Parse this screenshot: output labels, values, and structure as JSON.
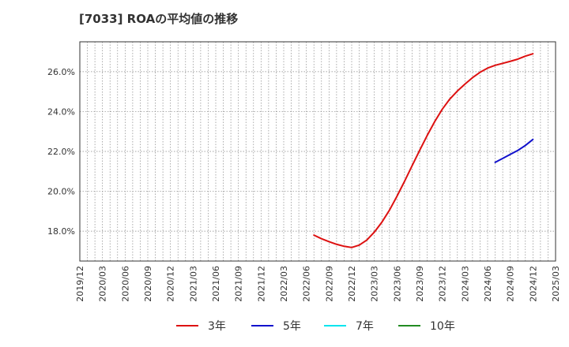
{
  "chart_data": {
    "type": "line",
    "title": "[7033]  ROAの平均値の推移",
    "xlabel": "",
    "ylabel": "",
    "x_tick_labels": [
      "2019/12",
      "2020/03",
      "2020/06",
      "2020/09",
      "2020/12",
      "2021/03",
      "2021/06",
      "2021/09",
      "2021/12",
      "2022/03",
      "2022/06",
      "2022/09",
      "2022/12",
      "2023/03",
      "2023/06",
      "2023/09",
      "2023/12",
      "2024/03",
      "2024/06",
      "2024/09",
      "2024/12",
      "2025/03"
    ],
    "y_tick_labels": [
      "18.0%",
      "20.0%",
      "22.0%",
      "24.0%",
      "26.0%"
    ],
    "y_ticks": [
      18,
      20,
      22,
      24,
      26
    ],
    "ylim": [
      16.5,
      27.5
    ],
    "xlim": [
      "2019/12",
      "2025/03"
    ],
    "grid": true,
    "legend_position": "bottom",
    "series": [
      {
        "name": "3年",
        "color": "#dd1111",
        "x": [
          "2022/07",
          "2022/08",
          "2022/09",
          "2022/10",
          "2022/11",
          "2022/12",
          "2023/01",
          "2023/02",
          "2023/03",
          "2023/04",
          "2023/05",
          "2023/06",
          "2023/07",
          "2023/08",
          "2023/09",
          "2023/10",
          "2023/11",
          "2023/12",
          "2024/01",
          "2024/02",
          "2024/03",
          "2024/04",
          "2024/05",
          "2024/06",
          "2024/07",
          "2024/08",
          "2024/09",
          "2024/10",
          "2024/11",
          "2024/12"
        ],
        "values": [
          17.8,
          17.62,
          17.47,
          17.34,
          17.24,
          17.18,
          17.3,
          17.55,
          17.95,
          18.45,
          19.05,
          19.75,
          20.5,
          21.28,
          22.05,
          22.8,
          23.5,
          24.12,
          24.63,
          25.03,
          25.38,
          25.7,
          25.97,
          26.18,
          26.32,
          26.42,
          26.52,
          26.63,
          26.78,
          26.9
        ]
      },
      {
        "name": "5年",
        "color": "#1111cc",
        "x": [
          "2024/07",
          "2024/08",
          "2024/09",
          "2024/10",
          "2024/11",
          "2024/12"
        ],
        "values": [
          21.45,
          21.65,
          21.85,
          22.05,
          22.3,
          22.6
        ]
      },
      {
        "name": "7年",
        "color": "#00e5ee",
        "x": [],
        "values": []
      },
      {
        "name": "10年",
        "color": "#228b22",
        "x": [],
        "values": []
      }
    ]
  }
}
